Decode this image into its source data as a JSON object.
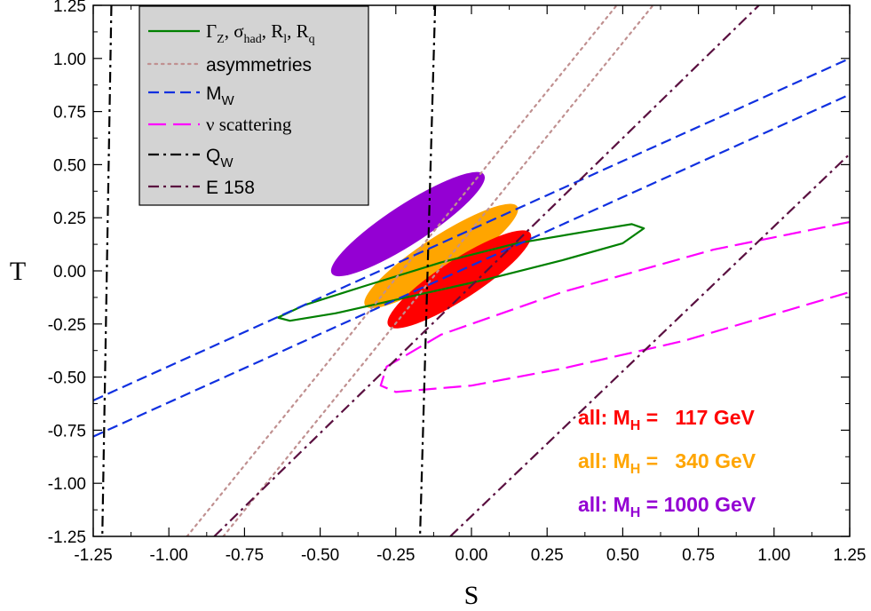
{
  "chart_data": {
    "type": "line",
    "title": "",
    "xlabel": "S",
    "ylabel": "T",
    "xlim": [
      -1.25,
      1.25
    ],
    "ylim": [
      -1.25,
      1.25
    ],
    "x_ticks": [
      "-1.25",
      "-1.00",
      "-0.75",
      "-0.50",
      "-0.25",
      "0.00",
      "0.25",
      "0.50",
      "0.75",
      "1.00",
      "1.25"
    ],
    "y_ticks": [
      "1.25",
      "1.00",
      "0.75",
      "0.50",
      "0.25",
      "0.00",
      "-0.25",
      "-0.50",
      "-0.75",
      "-1.00",
      "-1.25"
    ],
    "grid": false,
    "legend_position": "top-left",
    "legend": [
      {
        "label_main": "Γ",
        "label_sub": "Z",
        "label_rest": ", σ",
        "label_sub2": "had",
        "label_rest2": ", R",
        "label_sub3": "l",
        "label_rest3": ", R",
        "label_sub4": "q",
        "color": "#008000",
        "dash": "solid"
      },
      {
        "label": "asymmetries",
        "color": "#c09090",
        "dash": "dotted"
      },
      {
        "label_main": "M",
        "label_sub": "W",
        "color": "#1030e0",
        "dash": "dashed"
      },
      {
        "label": "ν scattering",
        "color": "#ff00ff",
        "dash": "longdash"
      },
      {
        "label_main": "Q",
        "label_sub": "W",
        "color": "#000000",
        "dash": "dashdot"
      },
      {
        "label": "E 158",
        "color": "#5a1040",
        "dash": "dashdot"
      }
    ],
    "series": [
      {
        "name": "ΓZ, σhad, Rl, Rq",
        "kind": "contour",
        "color": "#008000",
        "points": [
          [
            -0.64,
            -0.22
          ],
          [
            -0.55,
            -0.16
          ],
          [
            -0.35,
            -0.07
          ],
          [
            -0.1,
            0.04
          ],
          [
            0.15,
            0.13
          ],
          [
            0.4,
            0.19
          ],
          [
            0.53,
            0.22
          ],
          [
            0.57,
            0.2
          ],
          [
            0.5,
            0.13
          ],
          [
            0.3,
            0.05
          ],
          [
            0.05,
            -0.04
          ],
          [
            -0.2,
            -0.12
          ],
          [
            -0.45,
            -0.2
          ],
          [
            -0.6,
            -0.235
          ],
          [
            -0.64,
            -0.22
          ]
        ]
      },
      {
        "name": "asymmetries",
        "kind": "band",
        "color": "#c09090",
        "lines": [
          [
            [
              -0.94,
              -1.25
            ],
            [
              0.48,
              1.25
            ]
          ],
          [
            [
              -0.82,
              -1.25
            ],
            [
              0.6,
              1.25
            ]
          ]
        ]
      },
      {
        "name": "MW",
        "kind": "band",
        "color": "#1030e0",
        "lines": [
          [
            [
              -1.25,
              -0.61
            ],
            [
              1.25,
              1.0
            ]
          ],
          [
            [
              -1.25,
              -0.78
            ],
            [
              1.25,
              0.83
            ]
          ]
        ]
      },
      {
        "name": "ν scattering",
        "kind": "contour",
        "color": "#ff00ff",
        "points": [
          [
            1.25,
            0.23
          ],
          [
            0.8,
            0.1
          ],
          [
            0.3,
            -0.1
          ],
          [
            -0.1,
            -0.3
          ],
          [
            -0.28,
            -0.45
          ],
          [
            -0.3,
            -0.54
          ],
          [
            -0.25,
            -0.57
          ],
          [
            0.0,
            -0.54
          ],
          [
            0.3,
            -0.46
          ],
          [
            0.7,
            -0.33
          ],
          [
            1.25,
            -0.1
          ]
        ]
      },
      {
        "name": "QW",
        "kind": "band",
        "color": "#000000",
        "lines": [
          [
            [
              -1.19,
              1.25
            ],
            [
              -1.22,
              -1.25
            ]
          ],
          [
            [
              -0.12,
              1.25
            ],
            [
              -0.17,
              -1.25
            ]
          ]
        ]
      },
      {
        "name": "E 158",
        "kind": "band",
        "color": "#5a1040",
        "lines": [
          [
            [
              -0.85,
              -1.25
            ],
            [
              0.95,
              1.25
            ]
          ],
          [
            [
              -0.07,
              -1.25
            ],
            [
              1.25,
              0.55
            ]
          ]
        ]
      }
    ],
    "ellipses": [
      {
        "label": "all: MH = 1000 GeV",
        "mh_text": "1000 GeV",
        "color": "#9400d3",
        "cx": -0.21,
        "cy": 0.22,
        "rx": 0.3,
        "ry": 0.065,
        "angle_deg": 33
      },
      {
        "label": "all: MH = 340 GeV",
        "mh_text": "340 GeV",
        "color": "#ffa500",
        "cx": -0.1,
        "cy": 0.07,
        "rx": 0.3,
        "ry": 0.065,
        "angle_deg": 33
      },
      {
        "label": "all: MH = 117 GeV",
        "mh_text": "117 GeV",
        "color": "#ff0000",
        "cx": -0.04,
        "cy": -0.04,
        "rx": 0.28,
        "ry": 0.065,
        "angle_deg": 33
      }
    ],
    "annotations": [
      {
        "prefix": "all: M",
        "sub": "H",
        "eq": " = ",
        "value": "117 GeV",
        "color": "#ff0000"
      },
      {
        "prefix": "all: M",
        "sub": "H",
        "eq": " = ",
        "value": "340 GeV",
        "color": "#ffa500"
      },
      {
        "prefix": "all: M",
        "sub": "H",
        "eq": " = ",
        "value": "1000 GeV",
        "color": "#9400d3"
      }
    ]
  }
}
